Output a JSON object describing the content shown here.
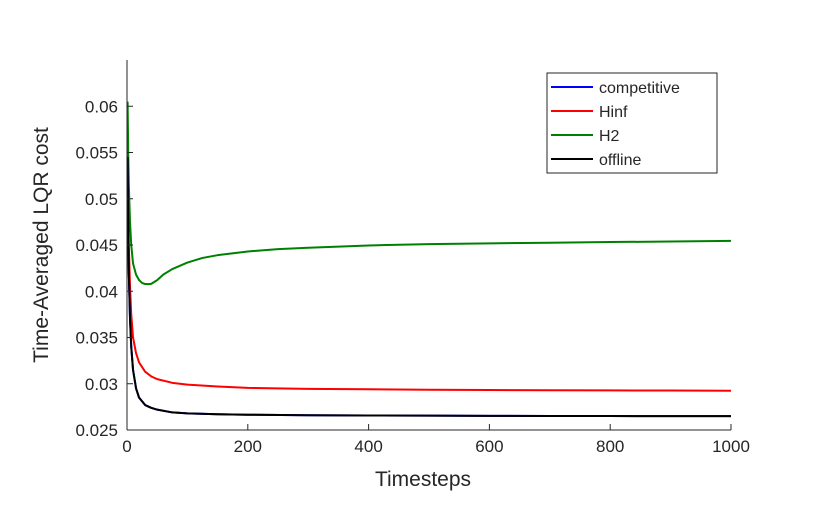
{
  "chart_data": {
    "type": "line",
    "title": "",
    "xlabel": "Timesteps",
    "ylabel": "Time-Averaged LQR cost",
    "xlim": [
      0,
      1000
    ],
    "ylim": [
      0.025,
      0.065
    ],
    "xticks": [
      0,
      200,
      400,
      600,
      800,
      1000
    ],
    "xtick_labels": [
      "0",
      "200",
      "400",
      "600",
      "800",
      "1000"
    ],
    "yticks": [
      0.025,
      0.03,
      0.035,
      0.04,
      0.045,
      0.05,
      0.055,
      0.06
    ],
    "ytick_labels": [
      "0.025",
      "0.03",
      "0.035",
      "0.04",
      "0.045",
      "0.05",
      "0.055",
      "0.06"
    ],
    "grid": false,
    "legend_position": "top-right",
    "series": [
      {
        "name": "competitive",
        "color": "#0000ff",
        "x": [
          1,
          2,
          3,
          5,
          7,
          10,
          15,
          20,
          30,
          40,
          50,
          75,
          100,
          150,
          200,
          300,
          400,
          500,
          600,
          700,
          800,
          900,
          1000
        ],
        "y": [
          0.0545,
          0.047,
          0.042,
          0.037,
          0.034,
          0.0315,
          0.0295,
          0.0285,
          0.0277,
          0.0274,
          0.0272,
          0.0269,
          0.0268,
          0.0267,
          0.02665,
          0.0266,
          0.02657,
          0.02655,
          0.02653,
          0.02652,
          0.02651,
          0.0265,
          0.0265
        ]
      },
      {
        "name": "Hinf",
        "color": "#ff0000",
        "x": [
          1,
          2,
          3,
          5,
          7,
          10,
          15,
          20,
          30,
          40,
          50,
          75,
          100,
          150,
          200,
          300,
          400,
          500,
          600,
          700,
          800,
          900,
          1000
        ],
        "y": [
          0.0545,
          0.049,
          0.045,
          0.0405,
          0.0375,
          0.035,
          0.0333,
          0.0323,
          0.0313,
          0.0308,
          0.0305,
          0.0301,
          0.0299,
          0.0297,
          0.02955,
          0.02945,
          0.0294,
          0.02935,
          0.02932,
          0.0293,
          0.02928,
          0.02927,
          0.02925
        ]
      },
      {
        "name": "H2",
        "color": "#008000",
        "x": [
          1,
          2,
          3,
          5,
          7,
          10,
          15,
          20,
          25,
          30,
          35,
          40,
          50,
          60,
          75,
          100,
          125,
          150,
          200,
          250,
          300,
          400,
          500,
          600,
          700,
          800,
          900,
          1000
        ],
        "y": [
          0.0605,
          0.055,
          0.0515,
          0.0475,
          0.045,
          0.043,
          0.0418,
          0.0412,
          0.0409,
          0.04078,
          0.04077,
          0.0408,
          0.0412,
          0.0418,
          0.0424,
          0.0431,
          0.0436,
          0.0439,
          0.0443,
          0.04455,
          0.0447,
          0.04495,
          0.0451,
          0.04518,
          0.04525,
          0.04532,
          0.04538,
          0.04545
        ]
      },
      {
        "name": "offline",
        "color": "#000000",
        "x": [
          1,
          2,
          3,
          5,
          7,
          10,
          15,
          20,
          30,
          40,
          50,
          75,
          100,
          150,
          200,
          300,
          400,
          500,
          600,
          700,
          800,
          900,
          1000
        ],
        "y": [
          0.0545,
          0.047,
          0.042,
          0.037,
          0.034,
          0.0315,
          0.0295,
          0.0285,
          0.0277,
          0.0274,
          0.0272,
          0.0269,
          0.0268,
          0.0267,
          0.02665,
          0.0266,
          0.02657,
          0.02655,
          0.02653,
          0.02652,
          0.02651,
          0.0265,
          0.0265
        ]
      }
    ]
  }
}
